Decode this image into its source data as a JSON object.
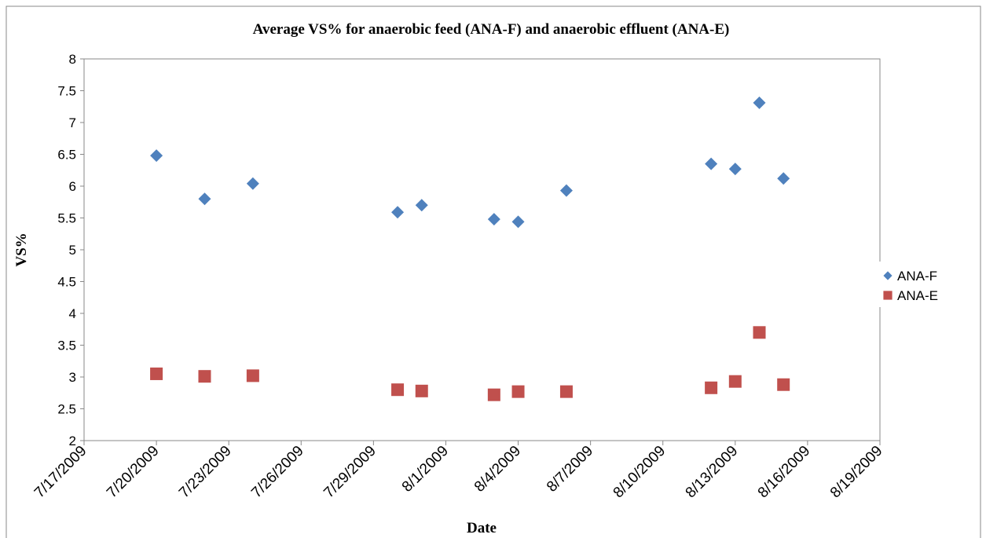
{
  "chart_data": {
    "type": "scatter",
    "title": "Average VS% for  anaerobic feed (ANA-F) and anaerobic effluent (ANA-E)",
    "x_label": "Date",
    "y_label": "VS%",
    "xlim": [
      "7/17/2009",
      "8/19/2009"
    ],
    "xticks": [
      "7/17/2009",
      "7/20/2009",
      "7/23/2009",
      "7/26/2009",
      "7/29/2009",
      "8/1/2009",
      "8/4/2009",
      "8/7/2009",
      "8/10/2009",
      "8/13/2009",
      "8/16/2009",
      "8/19/2009"
    ],
    "ylim": [
      2,
      8
    ],
    "yticks": [
      2,
      2.5,
      3,
      3.5,
      4,
      4.5,
      5,
      5.5,
      6,
      6.5,
      7,
      7.5,
      8
    ],
    "legend": "right",
    "series": [
      {
        "name": "ANA-F",
        "color": "#4f81bd",
        "marker": "diamond",
        "x": [
          "7/20/2009",
          "7/22/2009",
          "7/24/2009",
          "7/30/2009",
          "7/31/2009",
          "8/3/2009",
          "8/4/2009",
          "8/6/2009",
          "8/12/2009",
          "8/13/2009",
          "8/14/2009",
          "8/15/2009"
        ],
        "values": [
          6.48,
          5.8,
          6.04,
          5.59,
          5.7,
          5.48,
          5.44,
          5.93,
          6.35,
          6.27,
          7.31,
          6.12
        ]
      },
      {
        "name": "ANA-E",
        "color": "#c0504d",
        "marker": "square",
        "x": [
          "7/20/2009",
          "7/22/2009",
          "7/24/2009",
          "7/30/2009",
          "7/31/2009",
          "8/3/2009",
          "8/4/2009",
          "8/6/2009",
          "8/12/2009",
          "8/13/2009",
          "8/14/2009",
          "8/15/2009"
        ],
        "values": [
          3.05,
          3.01,
          3.02,
          2.8,
          2.78,
          2.72,
          2.77,
          2.77,
          2.83,
          2.93,
          3.7,
          2.88
        ]
      }
    ]
  }
}
